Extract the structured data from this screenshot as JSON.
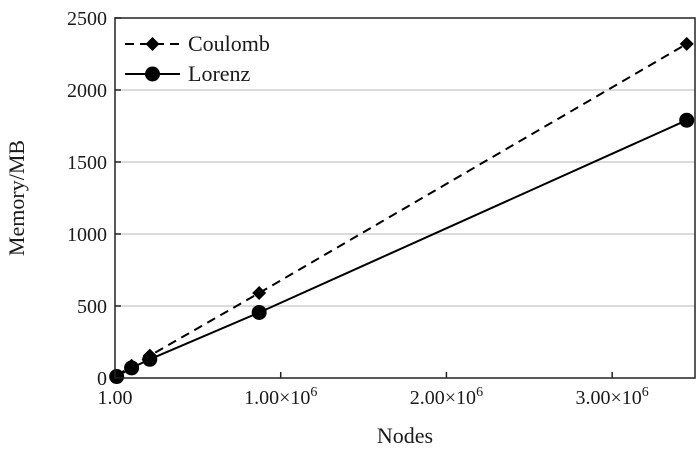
{
  "chart_data": {
    "type": "line",
    "xlabel": "Nodes",
    "ylabel": "Memory/MB",
    "xlim": [
      1.0,
      3500000
    ],
    "ylim": [
      0,
      2500
    ],
    "grid": "horizontal",
    "legend_position": "top-left",
    "x_ticks": [
      {
        "value": 1.0,
        "label": "1.00"
      },
      {
        "value": 1000000,
        "label": "1.00×10",
        "exp": "6"
      },
      {
        "value": 2000000,
        "label": "2.00×10",
        "exp": "6"
      },
      {
        "value": 3000000,
        "label": "3.00×10",
        "exp": "6"
      }
    ],
    "y_ticks": [
      0,
      500,
      1000,
      1500,
      2000,
      2500
    ],
    "y_tick_labels": [
      "0",
      "500",
      "1000",
      "1500",
      "2000",
      "2500"
    ],
    "series": [
      {
        "name": "Coulomb",
        "style": "dashed",
        "marker": "diamond",
        "color": "#000000",
        "x": [
          10000,
          100000,
          210000,
          870000,
          3450000
        ],
        "y": [
          15,
          85,
          155,
          590,
          2320
        ]
      },
      {
        "name": "Lorenz",
        "style": "solid",
        "marker": "circle",
        "color": "#000000",
        "x": [
          10000,
          100000,
          210000,
          870000,
          3450000
        ],
        "y": [
          10,
          70,
          130,
          455,
          1790
        ]
      }
    ]
  }
}
